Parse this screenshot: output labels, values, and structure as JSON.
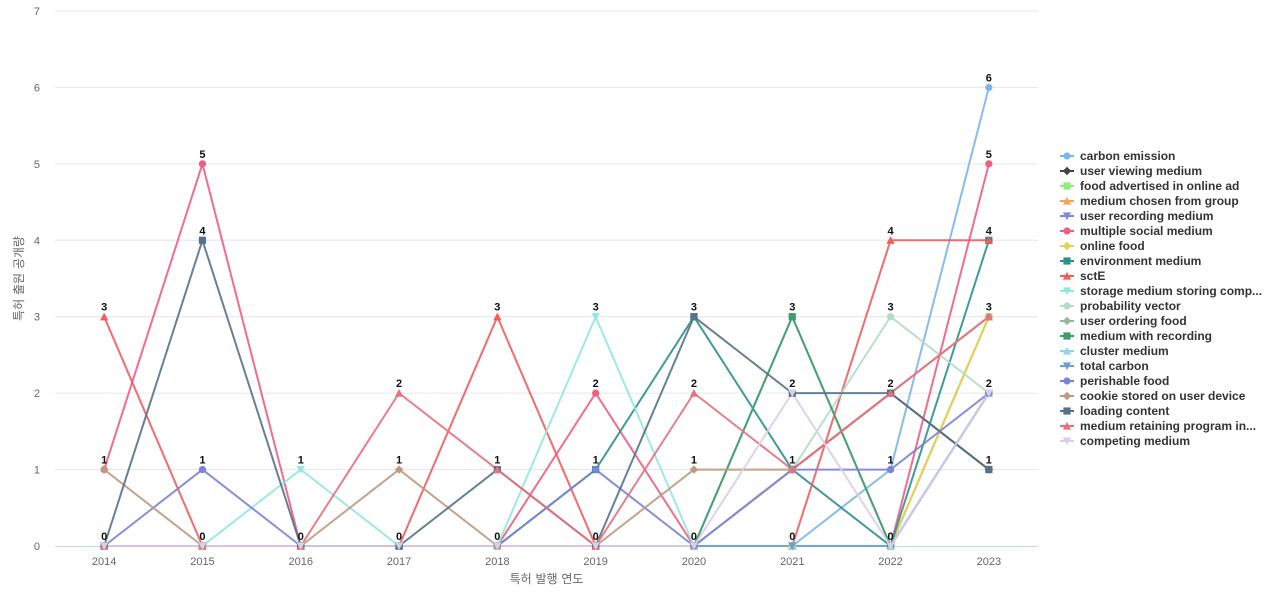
{
  "chart_data": {
    "type": "line",
    "xlabel": "특허 발행 연도",
    "ylabel": "특허 출원 공개량",
    "ylim": [
      0,
      7
    ],
    "yticks": [
      0,
      1,
      2,
      3,
      4,
      5,
      6,
      7
    ],
    "categories": [
      "2014",
      "2015",
      "2016",
      "2017",
      "2018",
      "2019",
      "2020",
      "2021",
      "2022",
      "2023"
    ],
    "legend_position": "right",
    "grid": true,
    "series": [
      {
        "name": "carbon emission",
        "color": "#7cb5ec",
        "marker": "circle",
        "values": [
          0,
          0,
          0,
          0,
          0,
          0,
          0,
          0,
          1,
          6
        ]
      },
      {
        "name": "user viewing medium",
        "color": "#434348",
        "marker": "diamond",
        "values": [
          0,
          0,
          0,
          0,
          0,
          0,
          0,
          1,
          2,
          1
        ]
      },
      {
        "name": "food advertised in online ad",
        "color": "#90ed7d",
        "marker": "square",
        "values": [
          0,
          0,
          0,
          0,
          0,
          0,
          0,
          0,
          0,
          3
        ]
      },
      {
        "name": "medium chosen from group",
        "color": "#f7a35c",
        "marker": "triangle",
        "values": [
          0,
          0,
          0,
          0,
          0,
          0,
          0,
          0,
          0,
          3
        ]
      },
      {
        "name": "user recording medium",
        "color": "#8085e9",
        "marker": "triangle-down",
        "values": [
          0,
          0,
          0,
          0,
          0,
          0,
          0,
          0,
          0,
          2
        ]
      },
      {
        "name": "multiple social medium",
        "color": "#f15c80",
        "marker": "circle",
        "values": [
          1,
          5,
          0,
          0,
          0,
          2,
          0,
          0,
          0,
          5
        ]
      },
      {
        "name": "online food",
        "color": "#e4d354",
        "marker": "diamond",
        "values": [
          0,
          0,
          0,
          0,
          0,
          0,
          0,
          0,
          0,
          3
        ]
      },
      {
        "name": "environment medium",
        "color": "#2b908f",
        "marker": "square",
        "values": [
          0,
          0,
          0,
          0,
          0,
          1,
          3,
          1,
          0,
          4
        ]
      },
      {
        "name": "sctE",
        "color": "#f45b5b",
        "marker": "triangle",
        "values": [
          3,
          0,
          0,
          0,
          3,
          0,
          0,
          0,
          4,
          4
        ]
      },
      {
        "name": "storage medium storing comp...",
        "color": "#91e8e1",
        "marker": "triangle-down",
        "values": [
          0,
          0,
          1,
          0,
          0,
          3,
          0,
          0,
          0,
          2
        ]
      },
      {
        "name": "probability vector",
        "color": "#b5dcc8",
        "marker": "circle",
        "values": [
          0,
          0,
          0,
          0,
          0,
          0,
          0,
          1,
          3,
          2
        ]
      },
      {
        "name": "user ordering food",
        "color": "#9bb59b",
        "marker": "diamond",
        "values": [
          0,
          0,
          0,
          0,
          0,
          0,
          0,
          3,
          0,
          2
        ]
      },
      {
        "name": "medium with recording",
        "color": "#3b9e6e",
        "marker": "square",
        "values": [
          0,
          0,
          0,
          0,
          0,
          0,
          0,
          3,
          0,
          2
        ]
      },
      {
        "name": "cluster medium",
        "color": "#8fd5e8",
        "marker": "triangle",
        "values": [
          0,
          0,
          0,
          0,
          0,
          0,
          0,
          0,
          0,
          2
        ]
      },
      {
        "name": "total carbon",
        "color": "#6a9fd8",
        "marker": "triangle-down",
        "values": [
          0,
          0,
          0,
          0,
          0,
          0,
          0,
          0,
          0,
          2
        ]
      },
      {
        "name": "perishable food",
        "color": "#7b82d9",
        "marker": "circle",
        "values": [
          0,
          1,
          0,
          0,
          0,
          1,
          0,
          1,
          1,
          2
        ]
      },
      {
        "name": "cookie stored on user device",
        "color": "#c0987d",
        "marker": "diamond",
        "values": [
          1,
          0,
          0,
          1,
          0,
          0,
          1,
          1,
          2,
          3
        ]
      },
      {
        "name": "loading content",
        "color": "#54738a",
        "marker": "square",
        "values": [
          0,
          4,
          0,
          0,
          1,
          0,
          3,
          2,
          2,
          1
        ]
      },
      {
        "name": "medium retaining program in...",
        "color": "#e8707a",
        "marker": "triangle",
        "values": [
          0,
          0,
          0,
          2,
          1,
          0,
          2,
          1,
          2,
          3
        ]
      },
      {
        "name": "competing medium",
        "color": "#dccde8",
        "marker": "triangle-down",
        "values": [
          0,
          0,
          0,
          0,
          0,
          0,
          0,
          2,
          0,
          2
        ]
      }
    ],
    "data_labels": [
      {
        "category": "2014",
        "value": 3,
        "text": "3"
      },
      {
        "category": "2014",
        "value": 1,
        "text": "1"
      },
      {
        "category": "2014",
        "value": 0,
        "text": "0"
      },
      {
        "category": "2015",
        "value": 5,
        "text": "5"
      },
      {
        "category": "2015",
        "value": 4,
        "text": "4"
      },
      {
        "category": "2015",
        "value": 1,
        "text": "1"
      },
      {
        "category": "2015",
        "value": 0,
        "text": "0"
      },
      {
        "category": "2016",
        "value": 1,
        "text": "1"
      },
      {
        "category": "2016",
        "value": 0,
        "text": "0"
      },
      {
        "category": "2017",
        "value": 2,
        "text": "2"
      },
      {
        "category": "2017",
        "value": 1,
        "text": "1"
      },
      {
        "category": "2017",
        "value": 0,
        "text": "0"
      },
      {
        "category": "2018",
        "value": 3,
        "text": "3"
      },
      {
        "category": "2018",
        "value": 1,
        "text": "1"
      },
      {
        "category": "2018",
        "value": 0,
        "text": "0"
      },
      {
        "category": "2019",
        "value": 3,
        "text": "3"
      },
      {
        "category": "2019",
        "value": 2,
        "text": "2"
      },
      {
        "category": "2019",
        "value": 1,
        "text": "1"
      },
      {
        "category": "2019",
        "value": 0,
        "text": "0"
      },
      {
        "category": "2020",
        "value": 3,
        "text": "3"
      },
      {
        "category": "2020",
        "value": 2,
        "text": "2"
      },
      {
        "category": "2020",
        "value": 1,
        "text": "1"
      },
      {
        "category": "2020",
        "value": 0,
        "text": "0"
      },
      {
        "category": "2021",
        "value": 3,
        "text": "3"
      },
      {
        "category": "2021",
        "value": 2,
        "text": "2"
      },
      {
        "category": "2021",
        "value": 1,
        "text": "1"
      },
      {
        "category": "2021",
        "value": 0,
        "text": "0"
      },
      {
        "category": "2022",
        "value": 4,
        "text": "4"
      },
      {
        "category": "2022",
        "value": 3,
        "text": "3"
      },
      {
        "category": "2022",
        "value": 2,
        "text": "2"
      },
      {
        "category": "2022",
        "value": 1,
        "text": "1"
      },
      {
        "category": "2022",
        "value": 0,
        "text": "0"
      },
      {
        "category": "2023",
        "value": 6,
        "text": "6"
      },
      {
        "category": "2023",
        "value": 5,
        "text": "5"
      },
      {
        "category": "2023",
        "value": 4,
        "text": "4"
      },
      {
        "category": "2023",
        "value": 3,
        "text": "3"
      },
      {
        "category": "2023",
        "value": 2,
        "text": "2"
      },
      {
        "category": "2023",
        "value": 1,
        "text": "1"
      }
    ]
  }
}
